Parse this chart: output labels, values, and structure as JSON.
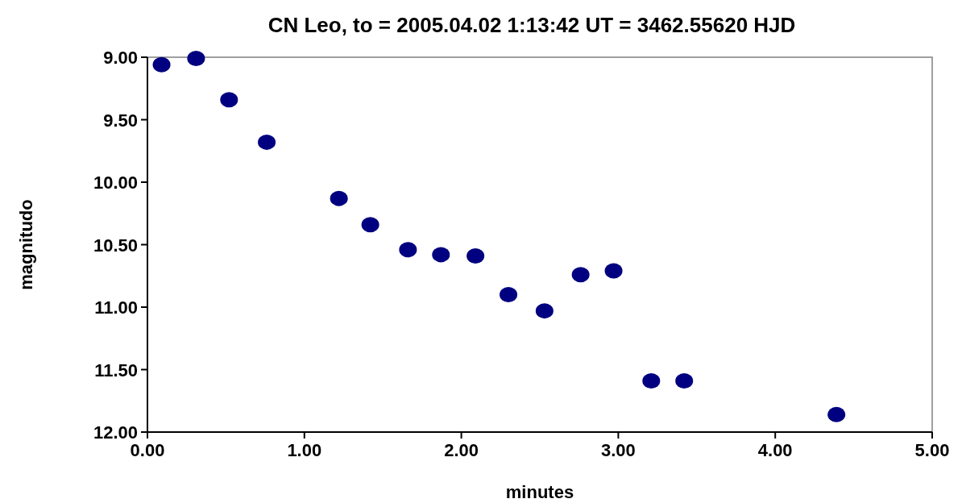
{
  "chart_data": {
    "type": "scatter",
    "title": "CN Leo, to = 2005.04.02 1:13:42 UT = 3462.55620 HJD",
    "xlabel": "minutes",
    "ylabel": "magnitudo",
    "x": [
      0.09,
      0.31,
      0.52,
      0.76,
      1.22,
      1.42,
      1.66,
      1.87,
      2.09,
      2.3,
      2.53,
      2.76,
      2.97,
      3.21,
      3.42,
      4.39
    ],
    "series": [
      {
        "color": "#000080",
        "values": [
          9.06,
          9.01,
          9.34,
          9.68,
          10.13,
          10.34,
          10.54,
          10.58,
          10.59,
          10.9,
          11.03,
          10.74,
          10.71,
          11.59,
          11.59,
          11.86
        ]
      }
    ],
    "xlim": [
      0,
      5
    ],
    "xticks": [
      {
        "value": 0,
        "label": "0.00"
      },
      {
        "value": 1,
        "label": "1.00"
      },
      {
        "value": 2,
        "label": "2.00"
      },
      {
        "value": 3,
        "label": "3.00"
      },
      {
        "value": 4,
        "label": "4.00"
      },
      {
        "value": 5,
        "label": "5.00"
      }
    ],
    "ylim": [
      12,
      9
    ],
    "yticks": [
      {
        "value": 9,
        "label": "9.00"
      },
      {
        "value": 9.5,
        "label": "9.50"
      },
      {
        "value": 10,
        "label": "10.00"
      },
      {
        "value": 10.5,
        "label": "10.50"
      },
      {
        "value": 11,
        "label": "11.00"
      },
      {
        "value": 11.5,
        "label": "11.50"
      },
      {
        "value": 12,
        "label": "12.00"
      }
    ],
    "marker": "circle",
    "grid": false
  }
}
